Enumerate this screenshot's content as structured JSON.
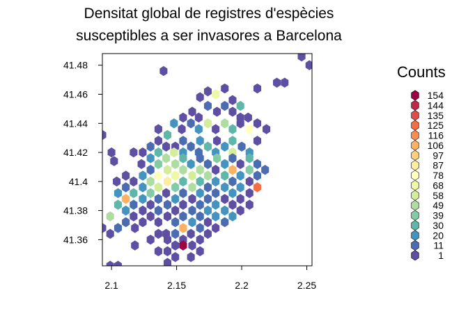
{
  "chart_data": {
    "type": "heatmap",
    "subtype": "hexbin",
    "title_line1": "Densitat global de registres d'espècies",
    "title_line2": "susceptibles a ser invasores a Barcelona",
    "xlim": [
      2.093,
      2.254
    ],
    "ylim": [
      41.342,
      41.488
    ],
    "x_ticks": [
      2.1,
      2.15,
      2.2,
      2.25
    ],
    "x_tick_labels": [
      "2.1",
      "2.15",
      "2.2",
      "2.25"
    ],
    "y_ticks": [
      41.36,
      41.38,
      41.4,
      41.42,
      41.44,
      41.46,
      41.48
    ],
    "y_tick_labels": [
      "41.36",
      "41.38",
      "41.4",
      "41.42",
      "41.44",
      "41.46",
      "41.48"
    ],
    "hex_size_x": 0.0052,
    "hex_size_y": 0.0036,
    "legend": {
      "title": "Counts",
      "levels": [
        {
          "label": "154",
          "color": "#9E0142"
        },
        {
          "label": "144",
          "color": "#C1284A"
        },
        {
          "label": "135",
          "color": "#DF4D4B"
        },
        {
          "label": "125",
          "color": "#F46D43"
        },
        {
          "label": "116",
          "color": "#FA8D52"
        },
        {
          "label": "106",
          "color": "#FDB163"
        },
        {
          "label": "97",
          "color": "#FED17E"
        },
        {
          "label": "87",
          "color": "#FEEDA0"
        },
        {
          "label": "78",
          "color": "#FFFFBF"
        },
        {
          "label": "68",
          "color": "#EEF8A6"
        },
        {
          "label": "58",
          "color": "#D4ED9B"
        },
        {
          "label": "49",
          "color": "#AEDDA1"
        },
        {
          "label": "39",
          "color": "#83CBA4"
        },
        {
          "label": "30",
          "color": "#5FB7AA"
        },
        {
          "label": "20",
          "color": "#4593BF"
        },
        {
          "label": "11",
          "color": "#4B6CB1"
        },
        {
          "label": "1",
          "color": "#5E4FA2"
        }
      ]
    },
    "bins": [
      [
        2.246,
        41.486,
        1
      ],
      [
        2.252,
        41.48,
        1
      ],
      [
        2.14,
        41.476,
        1
      ],
      [
        2.227,
        41.468,
        1
      ],
      [
        2.233,
        41.468,
        1
      ],
      [
        2.174,
        41.462,
        1
      ],
      [
        2.187,
        41.464,
        1
      ],
      [
        2.18,
        41.46,
        68
      ],
      [
        2.212,
        41.464,
        1
      ],
      [
        2.168,
        41.458,
        1
      ],
      [
        2.193,
        41.456,
        1
      ],
      [
        2.187,
        41.452,
        11
      ],
      [
        2.199,
        41.452,
        30
      ],
      [
        2.174,
        41.452,
        11
      ],
      [
        2.162,
        41.448,
        1
      ],
      [
        2.181,
        41.448,
        1
      ],
      [
        2.193,
        41.448,
        1
      ],
      [
        2.155,
        41.444,
        1
      ],
      [
        2.167,
        41.444,
        1
      ],
      [
        2.199,
        41.444,
        1
      ],
      [
        2.205,
        41.444,
        1
      ],
      [
        2.148,
        41.44,
        20
      ],
      [
        2.161,
        41.44,
        11
      ],
      [
        2.174,
        41.44,
        58
      ],
      [
        2.187,
        41.44,
        49
      ],
      [
        2.199,
        41.44,
        1
      ],
      [
        2.212,
        41.44,
        1
      ],
      [
        2.136,
        41.436,
        1
      ],
      [
        2.154,
        41.436,
        1
      ],
      [
        2.167,
        41.436,
        20
      ],
      [
        2.18,
        41.436,
        1
      ],
      [
        2.193,
        41.436,
        30
      ],
      [
        2.206,
        41.436,
        78
      ],
      [
        2.219,
        41.436,
        1
      ],
      [
        2.093,
        41.432,
        1
      ],
      [
        2.136,
        41.428,
        1
      ],
      [
        2.143,
        41.432,
        30
      ],
      [
        2.155,
        41.428,
        11
      ],
      [
        2.168,
        41.428,
        20
      ],
      [
        2.181,
        41.428,
        1
      ],
      [
        2.193,
        41.428,
        30
      ],
      [
        2.212,
        41.428,
        1
      ],
      [
        2.13,
        41.424,
        11
      ],
      [
        2.142,
        41.424,
        1
      ],
      [
        2.149,
        41.424,
        1
      ],
      [
        2.161,
        41.424,
        11
      ],
      [
        2.174,
        41.424,
        30
      ],
      [
        2.187,
        41.424,
        20
      ],
      [
        2.2,
        41.424,
        11
      ],
      [
        2.124,
        41.42,
        1
      ],
      [
        2.136,
        41.42,
        30
      ],
      [
        2.148,
        41.42,
        58
      ],
      [
        2.155,
        41.42,
        20
      ],
      [
        2.167,
        41.42,
        11
      ],
      [
        2.18,
        41.42,
        20
      ],
      [
        2.193,
        41.42,
        58
      ],
      [
        2.206,
        41.42,
        20
      ],
      [
        2.1,
        41.42,
        1
      ],
      [
        2.117,
        41.42,
        1
      ],
      [
        2.13,
        41.416,
        20
      ],
      [
        2.142,
        41.416,
        49
      ],
      [
        2.155,
        41.416,
        30
      ],
      [
        2.168,
        41.416,
        11
      ],
      [
        2.181,
        41.416,
        39
      ],
      [
        2.193,
        41.416,
        11
      ],
      [
        2.206,
        41.416,
        30
      ],
      [
        2.102,
        41.414,
        1
      ],
      [
        2.123,
        41.412,
        1
      ],
      [
        2.136,
        41.412,
        39
      ],
      [
        2.149,
        41.412,
        49
      ],
      [
        2.161,
        41.412,
        20
      ],
      [
        2.174,
        41.412,
        11
      ],
      [
        2.187,
        41.412,
        20
      ],
      [
        2.199,
        41.412,
        1
      ],
      [
        2.212,
        41.412,
        11
      ],
      [
        2.13,
        41.408,
        11
      ],
      [
        2.143,
        41.408,
        58
      ],
      [
        2.155,
        41.408,
        49
      ],
      [
        2.168,
        41.408,
        49
      ],
      [
        2.18,
        41.408,
        1
      ],
      [
        2.193,
        41.408,
        106
      ],
      [
        2.206,
        41.408,
        39
      ],
      [
        2.218,
        41.408,
        11
      ],
      [
        2.111,
        41.404,
        1
      ],
      [
        2.124,
        41.404,
        20
      ],
      [
        2.136,
        41.404,
        78
      ],
      [
        2.149,
        41.404,
        68
      ],
      [
        2.162,
        41.404,
        58
      ],
      [
        2.174,
        41.404,
        49
      ],
      [
        2.187,
        41.404,
        30
      ],
      [
        2.199,
        41.404,
        20
      ],
      [
        2.212,
        41.404,
        11
      ],
      [
        2.104,
        41.4,
        1
      ],
      [
        2.117,
        41.4,
        1
      ],
      [
        2.13,
        41.4,
        49
      ],
      [
        2.143,
        41.4,
        87
      ],
      [
        2.155,
        41.4,
        30
      ],
      [
        2.168,
        41.4,
        30
      ],
      [
        2.18,
        41.4,
        20
      ],
      [
        2.193,
        41.4,
        11
      ],
      [
        2.206,
        41.4,
        1
      ],
      [
        2.111,
        41.396,
        11
      ],
      [
        2.124,
        41.396,
        20
      ],
      [
        2.136,
        41.396,
        58
      ],
      [
        2.149,
        41.396,
        39
      ],
      [
        2.162,
        41.396,
        49
      ],
      [
        2.174,
        41.396,
        11
      ],
      [
        2.187,
        41.396,
        20
      ],
      [
        2.199,
        41.396,
        20
      ],
      [
        2.212,
        41.396,
        125
      ],
      [
        2.105,
        41.392,
        20
      ],
      [
        2.117,
        41.392,
        30
      ],
      [
        2.13,
        41.392,
        39
      ],
      [
        2.142,
        41.392,
        1
      ],
      [
        2.155,
        41.392,
        11
      ],
      [
        2.168,
        41.392,
        20
      ],
      [
        2.18,
        41.392,
        11
      ],
      [
        2.193,
        41.392,
        20
      ],
      [
        2.206,
        41.392,
        1
      ],
      [
        2.111,
        41.388,
        106
      ],
      [
        2.124,
        41.388,
        20
      ],
      [
        2.136,
        41.388,
        11
      ],
      [
        2.149,
        41.388,
        20
      ],
      [
        2.162,
        41.388,
        1
      ],
      [
        2.174,
        41.388,
        11
      ],
      [
        2.187,
        41.388,
        1
      ],
      [
        2.199,
        41.388,
        1
      ],
      [
        2.105,
        41.384,
        30
      ],
      [
        2.117,
        41.384,
        11
      ],
      [
        2.13,
        41.384,
        1
      ],
      [
        2.143,
        41.384,
        11
      ],
      [
        2.155,
        41.384,
        1
      ],
      [
        2.168,
        41.384,
        11
      ],
      [
        2.18,
        41.384,
        20
      ],
      [
        2.193,
        41.384,
        1
      ],
      [
        2.206,
        41.384,
        1
      ],
      [
        2.111,
        41.38,
        20
      ],
      [
        2.124,
        41.38,
        1
      ],
      [
        2.136,
        41.38,
        11
      ],
      [
        2.149,
        41.38,
        1
      ],
      [
        2.162,
        41.38,
        11
      ],
      [
        2.174,
        41.38,
        20
      ],
      [
        2.187,
        41.38,
        20
      ],
      [
        2.199,
        41.38,
        1
      ],
      [
        2.099,
        41.376,
        49
      ],
      [
        2.117,
        41.376,
        1
      ],
      [
        2.13,
        41.376,
        1
      ],
      [
        2.143,
        41.376,
        1
      ],
      [
        2.155,
        41.376,
        11
      ],
      [
        2.168,
        41.376,
        11
      ],
      [
        2.18,
        41.376,
        20
      ],
      [
        2.193,
        41.376,
        20
      ],
      [
        2.111,
        41.372,
        11
      ],
      [
        2.124,
        41.372,
        1
      ],
      [
        2.136,
        41.372,
        1
      ],
      [
        2.149,
        41.372,
        11
      ],
      [
        2.162,
        41.372,
        20
      ],
      [
        2.174,
        41.372,
        1
      ],
      [
        2.187,
        41.372,
        11
      ],
      [
        2.093,
        41.368,
        1
      ],
      [
        2.105,
        41.368,
        11
      ],
      [
        2.118,
        41.368,
        1
      ],
      [
        2.136,
        41.364,
        1
      ],
      [
        2.155,
        41.368,
        106
      ],
      [
        2.168,
        41.368,
        11
      ],
      [
        2.18,
        41.368,
        1
      ],
      [
        2.099,
        41.364,
        1
      ],
      [
        2.142,
        41.364,
        1
      ],
      [
        2.149,
        41.364,
        11
      ],
      [
        2.161,
        41.364,
        1
      ],
      [
        2.174,
        41.364,
        1
      ],
      [
        2.13,
        41.36,
        1
      ],
      [
        2.143,
        41.36,
        1
      ],
      [
        2.155,
        41.36,
        1
      ],
      [
        2.168,
        41.36,
        1
      ],
      [
        2.155,
        41.356,
        154
      ],
      [
        2.118,
        41.356,
        1
      ],
      [
        2.149,
        41.356,
        1
      ],
      [
        2.162,
        41.356,
        1
      ],
      [
        2.136,
        41.352,
        1
      ],
      [
        2.143,
        41.352,
        1
      ],
      [
        2.168,
        41.352,
        1
      ],
      [
        2.149,
        41.348,
        1
      ],
      [
        2.161,
        41.348,
        1
      ],
      [
        2.143,
        41.344,
        1
      ],
      [
        2.099,
        41.342,
        1
      ],
      [
        2.105,
        41.342,
        1
      ]
    ]
  }
}
